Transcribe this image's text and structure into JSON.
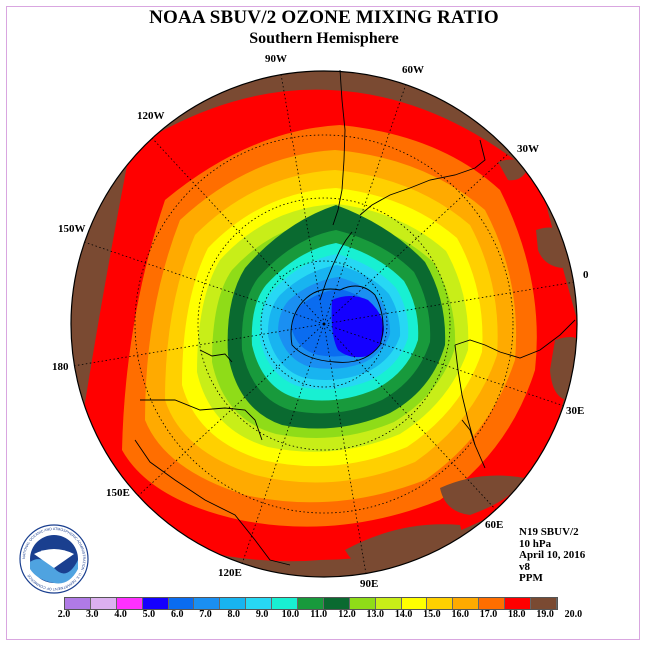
{
  "title": "NOAA SBUV/2 OZONE MIXING RATIO",
  "subtitle": "Southern Hemisphere",
  "info": {
    "satellite": "N19 SBUV/2",
    "level": "10 hPa",
    "date": "April 10, 2016",
    "version": "v8",
    "units": "PPM"
  },
  "longitude_labels": [
    "90W",
    "60W",
    "30W",
    "0",
    "30E",
    "60E",
    "90E",
    "120E",
    "150E",
    "180",
    "150W",
    "120W"
  ],
  "colorbar": {
    "ticks": [
      "2.0",
      "3.0",
      "4.0",
      "5.0",
      "6.0",
      "7.0",
      "8.0",
      "9.0",
      "10.0",
      "11.0",
      "12.0",
      "13.0",
      "14.0",
      "15.0",
      "16.0",
      "17.0",
      "18.0",
      "19.0",
      "20.0"
    ],
    "colors": [
      "#b07ae6",
      "#dcb0f0",
      "#ff30ff",
      "#1400ff",
      "#0a6cf0",
      "#1a8ff2",
      "#18b4f0",
      "#27d8f4",
      "#18f0d2",
      "#189a3c",
      "#0a6a30",
      "#8fdc18",
      "#c8ee18",
      "#ffff00",
      "#ffd000",
      "#ffaa00",
      "#ff6e00",
      "#ff0000",
      "#7a4a32"
    ]
  },
  "logo": {
    "text": "NOAA",
    "ring_text": "NATIONAL OCEANIC AND ATMOSPHERIC ADMINISTRATION · U.S. DEPARTMENT OF COMMERCE"
  }
}
